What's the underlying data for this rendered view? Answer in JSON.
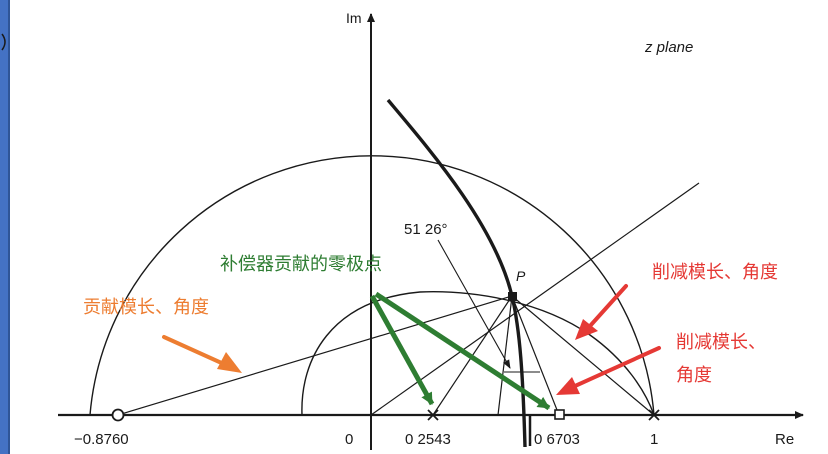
{
  "plane": {
    "title": "z plane",
    "axis_im": "Im",
    "axis_re": "Re"
  },
  "ticks": {
    "neg": "−0.8760",
    "zero": "0",
    "zero_b": "0 2543",
    "pole_b": "0 6703",
    "one": "1"
  },
  "point_p": "P",
  "angle_label": "51 26°",
  "notes": {
    "compensator": "补偿器贡献的零极点",
    "contribute": "贡献模长、角度",
    "reduce_1": "削减模长、角度",
    "reduce_2_line1": "削减模长、",
    "reduce_2_line2": "角度"
  },
  "colors": {
    "sidebar": "#4472C4",
    "green": "#2E7D32",
    "orange": "#ED7D31",
    "red": "#E53935",
    "ink": "#1a1a1a"
  }
}
